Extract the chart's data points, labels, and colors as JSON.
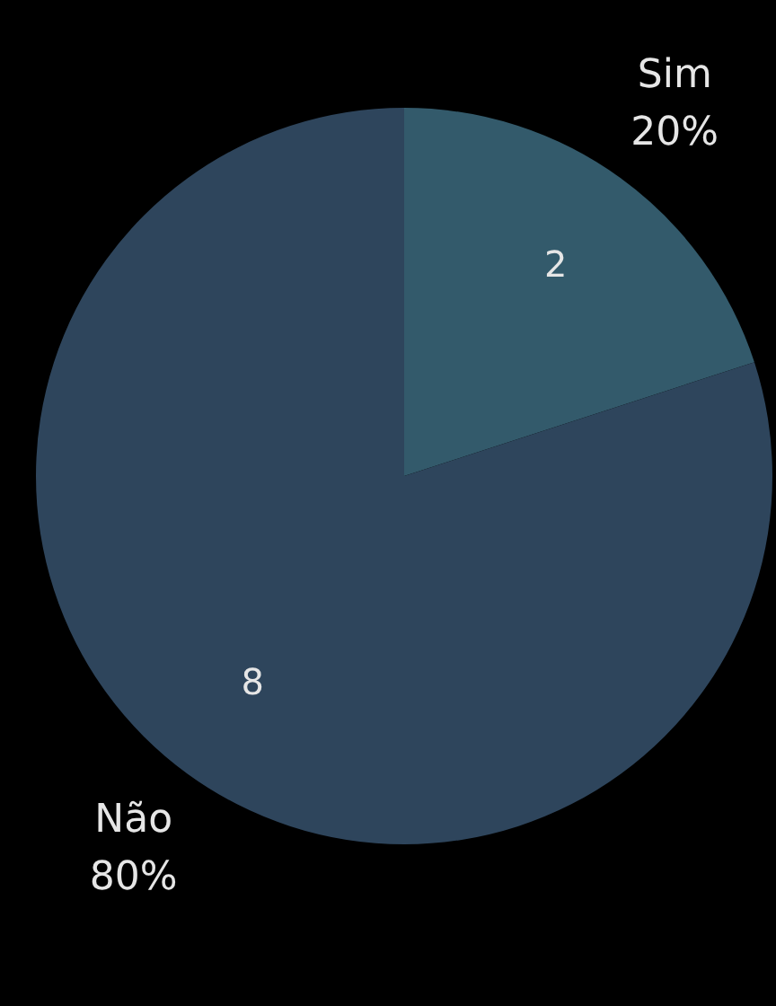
{
  "chart_data": {
    "type": "pie",
    "categories": [
      "Sim",
      "Não"
    ],
    "values": [
      2,
      8
    ],
    "colors": [
      "#335a6b",
      "#2e455c"
    ],
    "data_labels": true,
    "annotations": [
      {
        "text": "20%",
        "x": "Sim"
      },
      {
        "text": "80%",
        "x": "Não"
      }
    ],
    "legend": false
  }
}
